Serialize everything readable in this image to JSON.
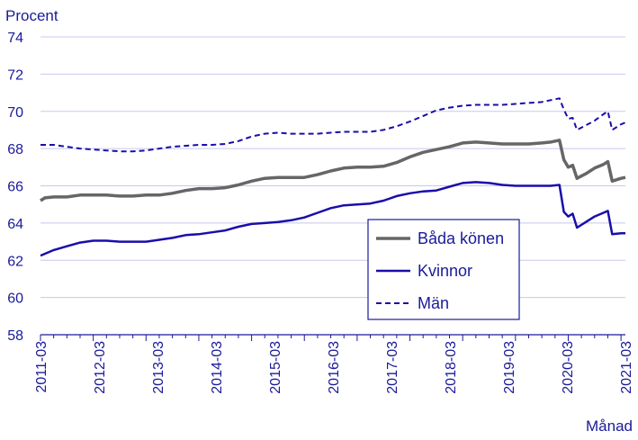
{
  "chart_data": {
    "type": "line",
    "ylabel": "Procent",
    "xlabel": "Månad",
    "ylim": [
      58,
      74
    ],
    "y_ticks": [
      58,
      60,
      62,
      64,
      66,
      68,
      70,
      72,
      74
    ],
    "x_ticks": [
      "2011-03",
      "2012-03",
      "2013-03",
      "2014-03",
      "2015-03",
      "2016-03",
      "2017-03",
      "2018-03",
      "2019-03",
      "2020-03",
      "2021-03"
    ],
    "x_index_range": [
      0,
      120
    ],
    "grid": "horizontal",
    "legend_position": "lower-right",
    "colors": {
      "axis": "#1a1a9a",
      "grid": "#c8c8ee"
    },
    "series": [
      {
        "name": "Båda könen",
        "color": "#666666",
        "style": "solid",
        "points": [
          [
            0,
            65.2
          ],
          [
            1,
            65.35
          ],
          [
            3,
            65.4
          ],
          [
            6,
            65.4
          ],
          [
            9,
            65.5
          ],
          [
            15,
            65.5
          ],
          [
            18,
            65.45
          ],
          [
            21,
            65.45
          ],
          [
            24,
            65.5
          ],
          [
            27,
            65.5
          ],
          [
            30,
            65.6
          ],
          [
            33,
            65.75
          ],
          [
            36,
            65.85
          ],
          [
            39,
            65.85
          ],
          [
            42,
            65.9
          ],
          [
            45,
            66.05
          ],
          [
            48,
            66.25
          ],
          [
            51,
            66.4
          ],
          [
            54,
            66.45
          ],
          [
            57,
            66.45
          ],
          [
            60,
            66.45
          ],
          [
            63,
            66.6
          ],
          [
            66,
            66.8
          ],
          [
            69,
            66.95
          ],
          [
            72,
            67.0
          ],
          [
            75,
            67.0
          ],
          [
            78,
            67.05
          ],
          [
            81,
            67.25
          ],
          [
            84,
            67.55
          ],
          [
            87,
            67.8
          ],
          [
            90,
            67.95
          ],
          [
            93,
            68.1
          ],
          [
            96,
            68.3
          ],
          [
            99,
            68.35
          ],
          [
            102,
            68.3
          ],
          [
            105,
            68.25
          ],
          [
            108,
            68.25
          ],
          [
            111,
            68.25
          ],
          [
            114,
            68.3
          ],
          [
            116,
            68.35
          ],
          [
            118,
            68.45
          ],
          [
            119,
            67.4
          ],
          [
            120,
            67.0
          ],
          [
            121,
            67.1
          ],
          [
            122,
            66.4
          ],
          [
            124,
            66.65
          ],
          [
            126,
            66.95
          ],
          [
            128,
            67.15
          ],
          [
            129,
            67.3
          ],
          [
            130,
            66.25
          ],
          [
            132,
            66.4
          ],
          [
            133,
            66.45
          ]
        ]
      },
      {
        "name": "Kvinnor",
        "color": "#1a0dab",
        "style": "solid",
        "points": [
          [
            0,
            62.25
          ],
          [
            3,
            62.55
          ],
          [
            6,
            62.75
          ],
          [
            9,
            62.95
          ],
          [
            12,
            63.05
          ],
          [
            15,
            63.05
          ],
          [
            18,
            63.0
          ],
          [
            21,
            63.0
          ],
          [
            24,
            63.0
          ],
          [
            27,
            63.1
          ],
          [
            30,
            63.2
          ],
          [
            33,
            63.35
          ],
          [
            36,
            63.4
          ],
          [
            39,
            63.5
          ],
          [
            42,
            63.6
          ],
          [
            45,
            63.8
          ],
          [
            48,
            63.95
          ],
          [
            51,
            64.0
          ],
          [
            54,
            64.05
          ],
          [
            57,
            64.15
          ],
          [
            60,
            64.3
          ],
          [
            63,
            64.55
          ],
          [
            66,
            64.8
          ],
          [
            69,
            64.95
          ],
          [
            72,
            65.0
          ],
          [
            75,
            65.05
          ],
          [
            78,
            65.2
          ],
          [
            81,
            65.45
          ],
          [
            84,
            65.6
          ],
          [
            87,
            65.7
          ],
          [
            90,
            65.75
          ],
          [
            93,
            65.95
          ],
          [
            96,
            66.15
          ],
          [
            99,
            66.2
          ],
          [
            102,
            66.15
          ],
          [
            105,
            66.05
          ],
          [
            108,
            66.0
          ],
          [
            111,
            66.0
          ],
          [
            114,
            66.0
          ],
          [
            116,
            66.0
          ],
          [
            118,
            66.05
          ],
          [
            119,
            64.6
          ],
          [
            120,
            64.35
          ],
          [
            121,
            64.5
          ],
          [
            122,
            63.75
          ],
          [
            124,
            64.05
          ],
          [
            126,
            64.35
          ],
          [
            128,
            64.55
          ],
          [
            129,
            64.65
          ],
          [
            130,
            63.4
          ],
          [
            132,
            63.45
          ],
          [
            133,
            63.45
          ]
        ]
      },
      {
        "name": "Män",
        "color": "#1a0dab",
        "style": "dashed",
        "points": [
          [
            0,
            68.2
          ],
          [
            3,
            68.2
          ],
          [
            6,
            68.1
          ],
          [
            9,
            68.0
          ],
          [
            12,
            67.95
          ],
          [
            15,
            67.9
          ],
          [
            18,
            67.85
          ],
          [
            21,
            67.85
          ],
          [
            24,
            67.9
          ],
          [
            27,
            68.0
          ],
          [
            30,
            68.1
          ],
          [
            33,
            68.15
          ],
          [
            36,
            68.2
          ],
          [
            39,
            68.2
          ],
          [
            42,
            68.25
          ],
          [
            45,
            68.4
          ],
          [
            48,
            68.65
          ],
          [
            51,
            68.8
          ],
          [
            54,
            68.85
          ],
          [
            57,
            68.8
          ],
          [
            60,
            68.8
          ],
          [
            63,
            68.8
          ],
          [
            66,
            68.85
          ],
          [
            69,
            68.9
          ],
          [
            72,
            68.9
          ],
          [
            75,
            68.9
          ],
          [
            78,
            69.0
          ],
          [
            81,
            69.2
          ],
          [
            84,
            69.45
          ],
          [
            87,
            69.75
          ],
          [
            90,
            70.05
          ],
          [
            93,
            70.2
          ],
          [
            96,
            70.3
          ],
          [
            99,
            70.35
          ],
          [
            102,
            70.35
          ],
          [
            105,
            70.35
          ],
          [
            108,
            70.4
          ],
          [
            111,
            70.45
          ],
          [
            114,
            70.5
          ],
          [
            116,
            70.6
          ],
          [
            118,
            70.7
          ],
          [
            119,
            70.1
          ],
          [
            120,
            69.6
          ],
          [
            121,
            69.65
          ],
          [
            122,
            69.0
          ],
          [
            124,
            69.25
          ],
          [
            126,
            69.5
          ],
          [
            128,
            69.85
          ],
          [
            129,
            70.0
          ],
          [
            130,
            69.0
          ],
          [
            132,
            69.3
          ],
          [
            133,
            69.4
          ]
        ]
      }
    ]
  }
}
